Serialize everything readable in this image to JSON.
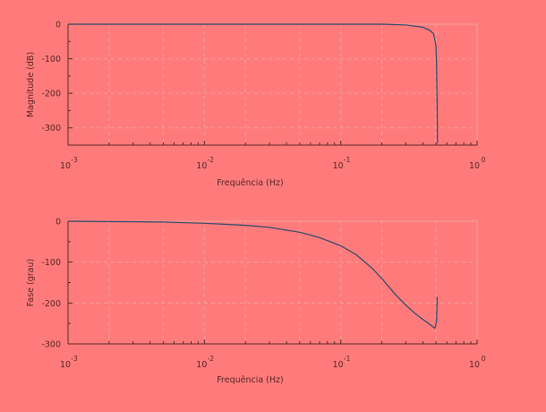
{
  "chart_data": [
    {
      "type": "line",
      "ylabel": "Magnitude (dB)",
      "xlabel": "Frequência (Hz)",
      "xscale": "log",
      "xlim": [
        0.001,
        1
      ],
      "ylim": [
        -350,
        0
      ],
      "xticks": [
        {
          "value": 0.001,
          "base": "10",
          "exp": "-3"
        },
        {
          "value": 0.01,
          "base": "10",
          "exp": "-2"
        },
        {
          "value": 0.1,
          "base": "10",
          "exp": "-1"
        },
        {
          "value": 1,
          "base": "10",
          "exp": "0"
        }
      ],
      "yticks": [
        0,
        -100,
        -200,
        -300
      ],
      "grid": true,
      "series": [
        {
          "x": [
            0.001,
            0.01,
            0.1,
            0.2,
            0.3,
            0.4,
            0.45,
            0.48,
            0.5,
            0.505,
            0.51,
            0.513
          ],
          "y": [
            0,
            0,
            0,
            0,
            -2,
            -9,
            -18,
            -28,
            -62,
            -120,
            -250,
            -345
          ]
        }
      ]
    },
    {
      "type": "line",
      "ylabel": "Fase (grau)",
      "xlabel": "Frequência (Hz)",
      "xscale": "log",
      "xlim": [
        0.001,
        1
      ],
      "ylim": [
        -300,
        0
      ],
      "xticks": [
        {
          "value": 0.001,
          "base": "10",
          "exp": "-3"
        },
        {
          "value": 0.01,
          "base": "10",
          "exp": "-2"
        },
        {
          "value": 0.1,
          "base": "10",
          "exp": "-1"
        },
        {
          "value": 1,
          "base": "10",
          "exp": "0"
        }
      ],
      "yticks": [
        0,
        -100,
        -200,
        -300
      ],
      "grid": true,
      "series": [
        {
          "x": [
            0.001,
            0.003,
            0.005,
            0.01,
            0.02,
            0.03,
            0.05,
            0.07,
            0.1,
            0.13,
            0.17,
            0.2,
            0.25,
            0.3,
            0.35,
            0.4,
            0.45,
            0.49,
            0.505,
            0.51
          ],
          "y": [
            0,
            -1,
            -2,
            -5,
            -10,
            -15,
            -27,
            -40,
            -60,
            -82,
            -115,
            -140,
            -178,
            -205,
            -225,
            -240,
            -252,
            -262,
            -245,
            -185
          ]
        }
      ]
    }
  ]
}
